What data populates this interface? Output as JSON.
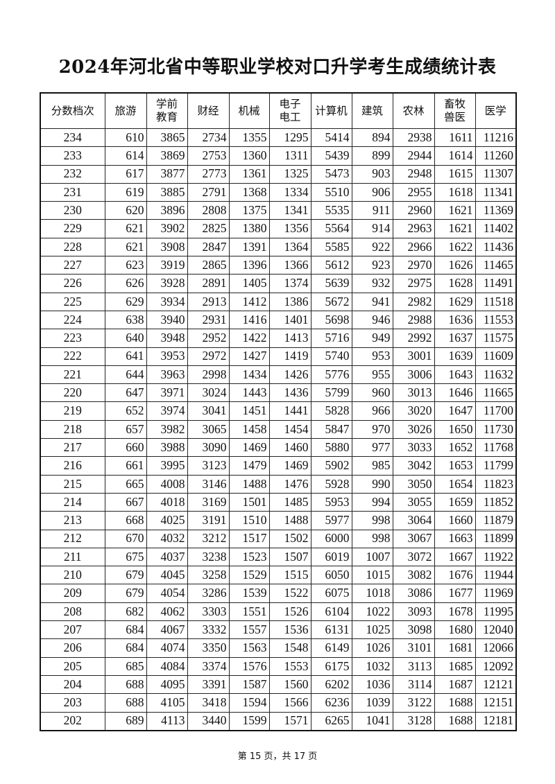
{
  "title": "2024年河北省中等职业学校对口升学考生成绩统计表",
  "table": {
    "headers": [
      "分数档次",
      "旅游",
      "学前\n教育",
      "财经",
      "机械",
      "电子\n电工",
      "计算机",
      "建筑",
      "农林",
      "畜牧\n兽医",
      "医学"
    ],
    "rows": [
      [
        "234",
        "610",
        "3865",
        "2734",
        "1355",
        "1295",
        "5414",
        "894",
        "2938",
        "1611",
        "11216"
      ],
      [
        "233",
        "614",
        "3869",
        "2753",
        "1360",
        "1311",
        "5439",
        "899",
        "2944",
        "1614",
        "11260"
      ],
      [
        "232",
        "617",
        "3877",
        "2773",
        "1361",
        "1325",
        "5473",
        "903",
        "2948",
        "1615",
        "11307"
      ],
      [
        "231",
        "619",
        "3885",
        "2791",
        "1368",
        "1334",
        "5510",
        "906",
        "2955",
        "1618",
        "11341"
      ],
      [
        "230",
        "620",
        "3896",
        "2808",
        "1375",
        "1341",
        "5535",
        "911",
        "2960",
        "1621",
        "11369"
      ],
      [
        "229",
        "621",
        "3902",
        "2825",
        "1380",
        "1356",
        "5564",
        "914",
        "2963",
        "1621",
        "11402"
      ],
      [
        "228",
        "621",
        "3908",
        "2847",
        "1391",
        "1364",
        "5585",
        "922",
        "2966",
        "1622",
        "11436"
      ],
      [
        "227",
        "623",
        "3919",
        "2865",
        "1396",
        "1366",
        "5612",
        "923",
        "2970",
        "1626",
        "11465"
      ],
      [
        "226",
        "626",
        "3928",
        "2891",
        "1405",
        "1374",
        "5639",
        "932",
        "2975",
        "1628",
        "11491"
      ],
      [
        "225",
        "629",
        "3934",
        "2913",
        "1412",
        "1386",
        "5672",
        "941",
        "2982",
        "1629",
        "11518"
      ],
      [
        "224",
        "638",
        "3940",
        "2931",
        "1416",
        "1401",
        "5698",
        "946",
        "2988",
        "1636",
        "11553"
      ],
      [
        "223",
        "640",
        "3948",
        "2952",
        "1422",
        "1413",
        "5716",
        "949",
        "2992",
        "1637",
        "11575"
      ],
      [
        "222",
        "641",
        "3953",
        "2972",
        "1427",
        "1419",
        "5740",
        "953",
        "3001",
        "1639",
        "11609"
      ],
      [
        "221",
        "644",
        "3963",
        "2998",
        "1434",
        "1426",
        "5776",
        "955",
        "3006",
        "1643",
        "11632"
      ],
      [
        "220",
        "647",
        "3971",
        "3024",
        "1443",
        "1436",
        "5799",
        "960",
        "3013",
        "1646",
        "11665"
      ],
      [
        "219",
        "652",
        "3974",
        "3041",
        "1451",
        "1441",
        "5828",
        "966",
        "3020",
        "1647",
        "11700"
      ],
      [
        "218",
        "657",
        "3982",
        "3065",
        "1458",
        "1454",
        "5847",
        "970",
        "3026",
        "1650",
        "11730"
      ],
      [
        "217",
        "660",
        "3988",
        "3090",
        "1469",
        "1460",
        "5880",
        "977",
        "3033",
        "1652",
        "11768"
      ],
      [
        "216",
        "661",
        "3995",
        "3123",
        "1479",
        "1469",
        "5902",
        "985",
        "3042",
        "1653",
        "11799"
      ],
      [
        "215",
        "665",
        "4008",
        "3146",
        "1488",
        "1476",
        "5928",
        "990",
        "3050",
        "1654",
        "11823"
      ],
      [
        "214",
        "667",
        "4018",
        "3169",
        "1501",
        "1485",
        "5953",
        "994",
        "3055",
        "1659",
        "11852"
      ],
      [
        "213",
        "668",
        "4025",
        "3191",
        "1510",
        "1488",
        "5977",
        "998",
        "3064",
        "1660",
        "11879"
      ],
      [
        "212",
        "670",
        "4032",
        "3212",
        "1517",
        "1502",
        "6000",
        "998",
        "3067",
        "1663",
        "11899"
      ],
      [
        "211",
        "675",
        "4037",
        "3238",
        "1523",
        "1507",
        "6019",
        "1007",
        "3072",
        "1667",
        "11922"
      ],
      [
        "210",
        "679",
        "4045",
        "3258",
        "1529",
        "1515",
        "6050",
        "1015",
        "3082",
        "1676",
        "11944"
      ],
      [
        "209",
        "679",
        "4054",
        "3286",
        "1539",
        "1522",
        "6075",
        "1018",
        "3086",
        "1677",
        "11969"
      ],
      [
        "208",
        "682",
        "4062",
        "3303",
        "1551",
        "1526",
        "6104",
        "1022",
        "3093",
        "1678",
        "11995"
      ],
      [
        "207",
        "684",
        "4067",
        "3332",
        "1557",
        "1536",
        "6131",
        "1025",
        "3098",
        "1680",
        "12040"
      ],
      [
        "206",
        "684",
        "4074",
        "3350",
        "1563",
        "1548",
        "6149",
        "1026",
        "3101",
        "1681",
        "12066"
      ],
      [
        "205",
        "685",
        "4084",
        "3374",
        "1576",
        "1553",
        "6175",
        "1032",
        "3113",
        "1685",
        "12092"
      ],
      [
        "204",
        "688",
        "4095",
        "3391",
        "1587",
        "1560",
        "6202",
        "1036",
        "3114",
        "1687",
        "12121"
      ],
      [
        "203",
        "688",
        "4105",
        "3418",
        "1594",
        "1566",
        "6236",
        "1039",
        "3122",
        "1688",
        "12151"
      ],
      [
        "202",
        "689",
        "4113",
        "3440",
        "1599",
        "1571",
        "6265",
        "1041",
        "3128",
        "1688",
        "12181"
      ]
    ]
  },
  "footer": "第 15 页，共 17 页"
}
